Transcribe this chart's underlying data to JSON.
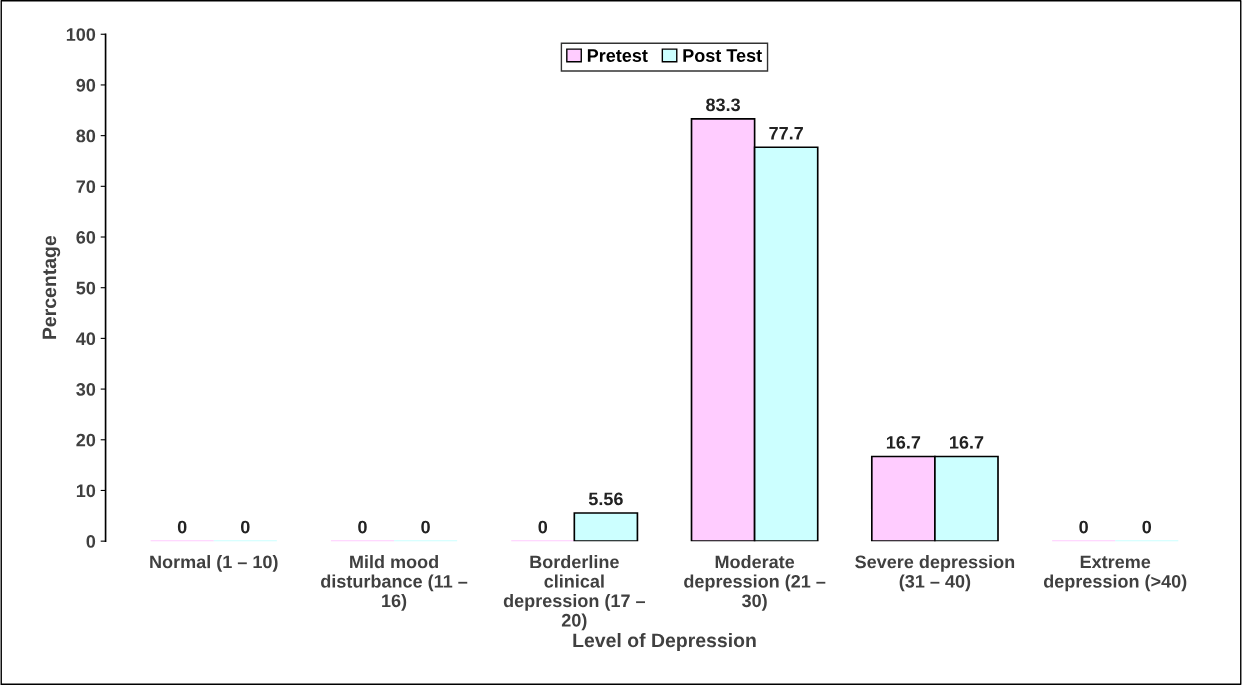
{
  "chart_data": {
    "type": "bar",
    "xlabel": "Level of Depression",
    "ylabel": "Percentage",
    "categories": [
      "Normal (1 – 10)",
      "Mild mood disturbance (11 – 16)",
      "Borderline clinical depression (17 – 20)",
      "Moderate depression (21 – 30)",
      "Severe depression (31 – 40)",
      "Extreme depression (>40)"
    ],
    "series": [
      {
        "name": "Pretest",
        "color": "#ffccff",
        "values": [
          0,
          0,
          0,
          83.3,
          16.7,
          0
        ]
      },
      {
        "name": "Post Test",
        "color": "#ccffff",
        "values": [
          0,
          0,
          5.56,
          77.7,
          16.7,
          0
        ]
      }
    ],
    "ylim": [
      0,
      100
    ],
    "yticks": [
      0,
      10,
      20,
      30,
      40,
      50,
      60,
      70,
      80,
      90,
      100
    ],
    "data_labels": true,
    "grid": false,
    "legend": "top"
  }
}
